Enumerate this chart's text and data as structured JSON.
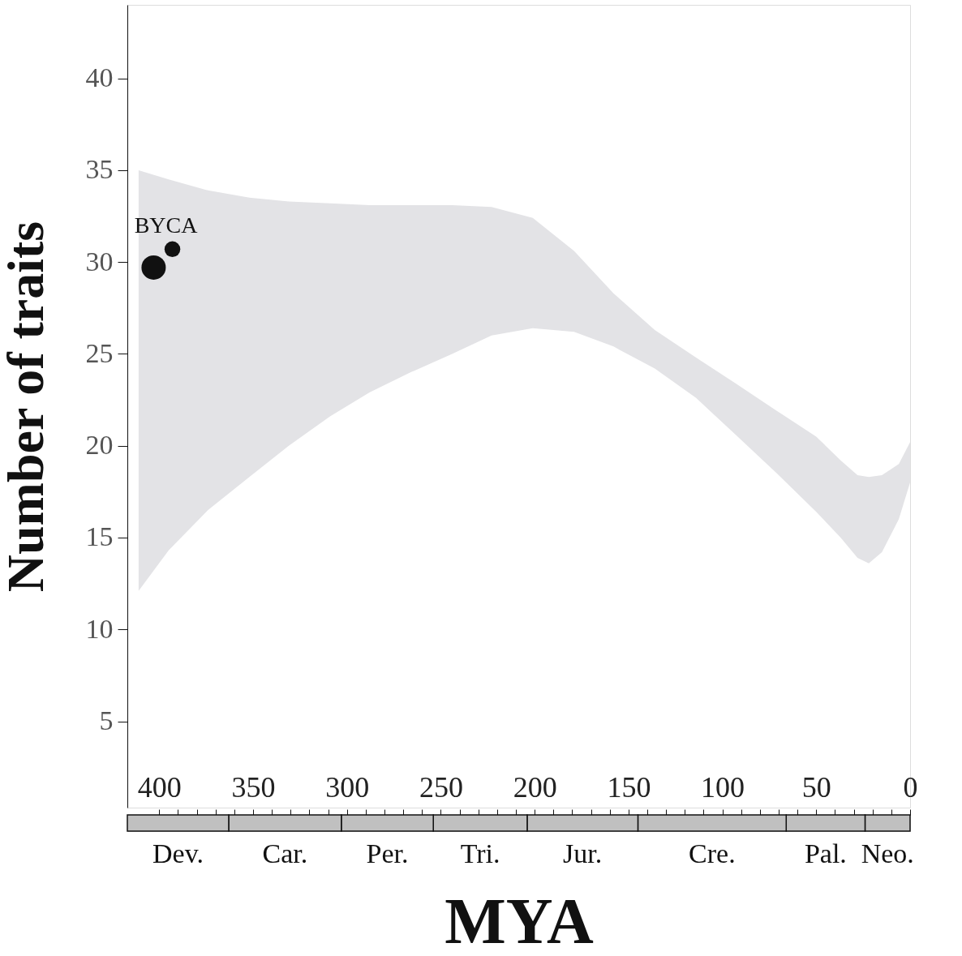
{
  "chart_data": [
    {
      "type": "bubble",
      "ylabel": "Number of traits",
      "xlim": [
        417,
        0
      ],
      "ylim": [
        0.3,
        44
      ],
      "xticks": [
        400,
        350,
        300,
        250,
        200,
        150,
        100,
        50,
        0
      ],
      "yticks": [
        5,
        10,
        15,
        20,
        25,
        30,
        35,
        40
      ],
      "grid": false,
      "legend": false,
      "series": [
        {
          "type": "area",
          "color": "#e3e3e6",
          "x": [
            411,
            395,
            374,
            352,
            331,
            309,
            288,
            266,
            244,
            223,
            201,
            179,
            158,
            136,
            114,
            93,
            71,
            50,
            37,
            28,
            22,
            15,
            6,
            0
          ],
          "values": [
            null,
            null,
            null,
            null,
            null,
            null,
            null,
            null,
            null,
            null,
            null,
            null,
            null,
            null,
            null,
            null,
            null,
            null,
            null,
            null,
            null,
            null,
            null,
            null
          ],
          "lower": [
            12.1,
            14.3,
            16.5,
            18.3,
            20.0,
            21.6,
            22.9,
            24.0,
            25.0,
            26.0,
            26.4,
            26.2,
            25.4,
            24.2,
            22.6,
            20.6,
            18.5,
            16.4,
            15.0,
            13.9,
            13.6,
            14.2,
            16.0,
            18.0
          ],
          "upper": [
            35.0,
            34.5,
            33.9,
            33.5,
            33.3,
            33.2,
            33.1,
            33.1,
            33.1,
            33.0,
            32.4,
            30.6,
            28.3,
            26.3,
            24.8,
            23.4,
            21.9,
            20.5,
            19.2,
            18.4,
            18.3,
            18.4,
            19.0,
            20.2
          ]
        },
        {
          "color": "#111111",
          "x": [
            403,
            393
          ],
          "values": [
            29.7,
            30.7
          ],
          "sizes": [
            1,
            0.42
          ]
        }
      ],
      "annotations": [
        {
          "text": "BYCA",
          "x": 393,
          "y": 30.7
        }
      ]
    },
    {
      "type": "bar",
      "orientation": "horizontal",
      "stacked": true,
      "xlabel": "MYA",
      "categories": [
        null
      ],
      "xlim": [
        417,
        0
      ],
      "xticks": [
        {
          "value": 400,
          "label": null
        },
        {
          "value": 390,
          "label": null
        },
        {
          "value": 380,
          "label": null
        },
        {
          "value": 370,
          "label": null
        },
        {
          "value": 360,
          "label": null
        },
        {
          "value": 350,
          "label": null
        },
        {
          "value": 340,
          "label": null
        },
        {
          "value": 330,
          "label": null
        },
        {
          "value": 320,
          "label": null
        },
        {
          "value": 310,
          "label": null
        },
        {
          "value": 300,
          "label": null
        },
        {
          "value": 290,
          "label": null
        },
        {
          "value": 280,
          "label": null
        },
        {
          "value": 270,
          "label": null
        },
        {
          "value": 260,
          "label": null
        },
        {
          "value": 250,
          "label": null
        },
        {
          "value": 240,
          "label": null
        },
        {
          "value": 230,
          "label": null
        },
        {
          "value": 220,
          "label": null
        },
        {
          "value": 210,
          "label": null
        },
        {
          "value": 200,
          "label": null
        },
        {
          "value": 190,
          "label": null
        },
        {
          "value": 180,
          "label": null
        },
        {
          "value": 170,
          "label": null
        },
        {
          "value": 160,
          "label": null
        },
        {
          "value": 150,
          "label": null
        },
        {
          "value": 140,
          "label": null
        },
        {
          "value": 130,
          "label": null
        },
        {
          "value": 120,
          "label": null
        },
        {
          "value": 110,
          "label": null
        },
        {
          "value": 100,
          "label": null
        },
        {
          "value": 90,
          "label": null
        },
        {
          "value": 80,
          "label": null
        },
        {
          "value": 70,
          "label": null
        },
        {
          "value": 60,
          "label": null
        },
        {
          "value": 50,
          "label": null
        },
        {
          "value": 40,
          "label": null
        },
        {
          "value": 30,
          "label": null
        },
        {
          "value": 20,
          "label": null
        },
        {
          "value": 10,
          "label": null
        },
        {
          "value": 0,
          "label": null
        }
      ],
      "tick_labels": false,
      "legend": "bottom",
      "series": [
        {
          "name": "Neo.",
          "color": "#c0c0c0",
          "values": [
            24
          ]
        },
        {
          "name": "Pal.",
          "color": "#c0c0c0",
          "values": [
            42
          ]
        },
        {
          "name": "Cre.",
          "color": "#c0c0c0",
          "values": [
            79
          ]
        },
        {
          "name": "Jur.",
          "color": "#c0c0c0",
          "values": [
            59
          ]
        },
        {
          "name": "Tri.",
          "color": "#c0c0c0",
          "values": [
            50
          ]
        },
        {
          "name": "Per.",
          "color": "#c0c0c0",
          "values": [
            49
          ]
        },
        {
          "name": "Car.",
          "color": "#c0c0c0",
          "values": [
            60
          ]
        },
        {
          "name": "Dev.",
          "color": "#c0c0c0",
          "values": [
            54
          ]
        }
      ]
    }
  ]
}
